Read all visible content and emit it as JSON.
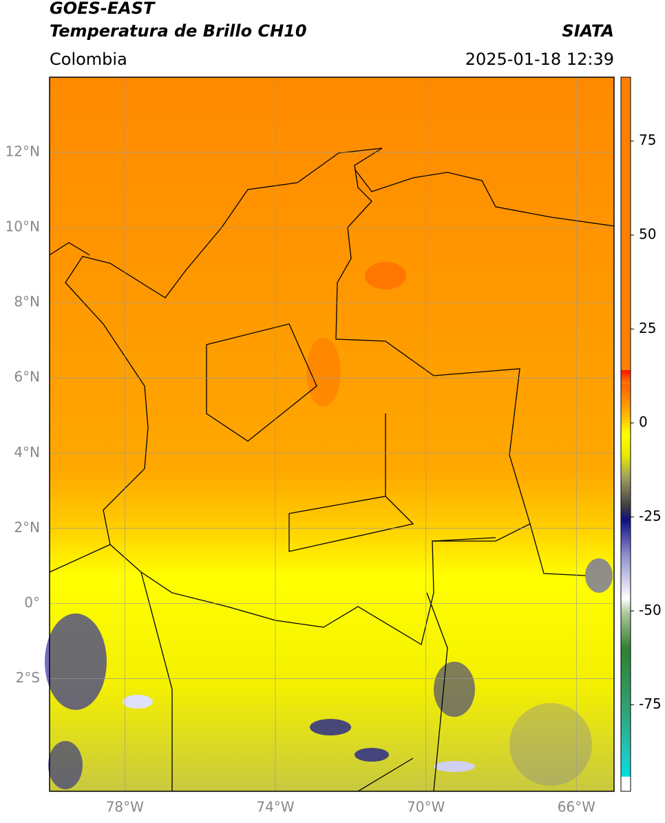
{
  "header": {
    "title": "GOES-EAST",
    "subtitle": "Temperatura de Brillo CH10",
    "source": "SIATA",
    "region": "Colombia",
    "timestamp": "2025-01-18 12:39"
  },
  "map": {
    "lonlim": [
      -80,
      -65
    ],
    "latlim": [
      -5,
      14
    ],
    "lonticks": [
      {
        "value": -78,
        "label": "78°W"
      },
      {
        "value": -74,
        "label": "74°W"
      },
      {
        "value": -70,
        "label": "70°W"
      },
      {
        "value": -66,
        "label": "66°W"
      }
    ],
    "latticks": [
      {
        "value": 12,
        "label": "12°N"
      },
      {
        "value": 10,
        "label": "10°N"
      },
      {
        "value": 8,
        "label": "8°N"
      },
      {
        "value": 6,
        "label": "6°N"
      },
      {
        "value": 4,
        "label": "4°N"
      },
      {
        "value": 2,
        "label": "2°N"
      },
      {
        "value": 0,
        "label": "0°"
      },
      {
        "value": -2,
        "label": "2°S"
      }
    ],
    "grid": true
  },
  "colorbar": {
    "lim": [
      -98,
      92
    ],
    "ticks": [
      75,
      50,
      25,
      0,
      -25,
      -50,
      -75
    ]
  }
}
